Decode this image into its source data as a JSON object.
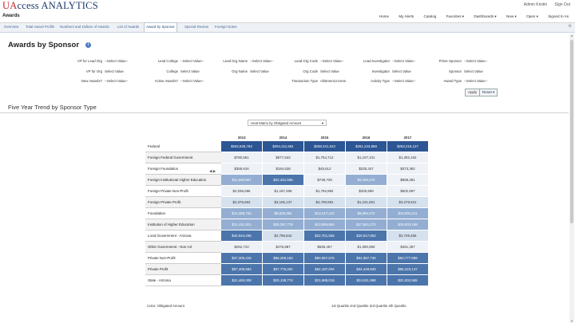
{
  "brand": {
    "u": "UA",
    "rest": "ccess ANALYTICS"
  },
  "user_links": [
    "Admin Kristin",
    "Sign Out"
  ],
  "nav": {
    "title": "Awards",
    "links": [
      "Home",
      "My Alerts",
      "Catalog",
      "Favorites ▾",
      "Dashboards ▾",
      "New ▾",
      "Open ▾",
      "Signed In As"
    ]
  },
  "tabs": [
    {
      "label": "Overview",
      "active": false
    },
    {
      "label": "Total Award Profile",
      "active": false
    },
    {
      "label": "Numbers and Dollars of Awards",
      "active": false
    },
    {
      "label": "List of Awards",
      "active": false
    },
    {
      "label": "Award by Sponsor",
      "active": true
    },
    {
      "label": "Special Review",
      "active": false
    },
    {
      "label": "Foreign Notes",
      "active": false
    }
  ],
  "page": {
    "title": "Awards by Sponsor"
  },
  "prompts": {
    "row1": [
      {
        "label": "VP for Lead Org",
        "value": "--Select Value--"
      },
      {
        "label": "Lead College",
        "value": "--Select Value--"
      },
      {
        "label": "Lead Org Name",
        "value": "--Select Value--"
      },
      {
        "label": "Lead Org Code",
        "value": "--Select Value--"
      },
      {
        "label": "Lead Investigator",
        "value": "--Select Value--"
      },
      {
        "label": "Prime Sponsor",
        "value": "--Select Value--"
      }
    ],
    "row2": [
      {
        "label": "VP for Org",
        "value": "Select Value"
      },
      {
        "label": "College",
        "value": "Select Value"
      },
      {
        "label": "Org Name",
        "value": "Select Value"
      },
      {
        "label": "Org Code",
        "value": "Select Value"
      },
      {
        "label": "Investigator",
        "value": "Select Value"
      },
      {
        "label": "Sponsor",
        "value": "Select Value"
      }
    ],
    "row3": [
      {
        "label": "New Awards?",
        "value": "--Select Value--"
      },
      {
        "label": "Active Awards?",
        "value": "--Select Value--"
      },
      {
        "label": "",
        "value": ""
      },
      {
        "label": "Transaction Type",
        "value": "Allotment,Increm"
      },
      {
        "label": "Activity Type",
        "value": "--Select Value--"
      },
      {
        "label": "Award Type",
        "value": "--Select Value--"
      }
    ],
    "apply_label": "Apply",
    "reset_label": "Reset ▾"
  },
  "section": {
    "title": "Five Year Trend by Sponsor Type",
    "table_selector": "Heat Matrix by Obligated Amount"
  },
  "table": {
    "years": [
      "2013",
      "2014",
      "2015",
      "2016",
      "2017"
    ],
    "rows": [
      {
        "name": "Federal",
        "values": [
          "$262,628,762",
          "$254,411,581",
          "$268,341,042",
          "$251,223,868",
          "$263,219,127"
        ],
        "shades": [
          1,
          1,
          1,
          1,
          1
        ]
      },
      {
        "name": "Foreign Federal Government",
        "values": [
          "$780,651",
          "$577,532",
          "$1,754,712",
          "$1,107,101",
          "$1,302,152"
        ],
        "shades": [
          5,
          5,
          5,
          5,
          5
        ]
      },
      {
        "name": "Foreign Foundation",
        "values": [
          "$359,616",
          "$184,538",
          "$45,612",
          "$225,347",
          "$373,382"
        ],
        "shades": [
          5,
          5,
          5,
          5,
          5
        ]
      },
      {
        "name": "Foreign Institutional Higher Education",
        "values": [
          "$11,500,967",
          "$22,331,565",
          "$738,729",
          "$9,450,276",
          "$958,281"
        ],
        "shades": [
          3,
          2,
          5,
          3,
          5
        ]
      },
      {
        "name": "Foreign Private Non-Profit",
        "values": [
          "$2,036,096",
          "$1,197,459",
          "$1,794,984",
          "$325,599",
          "$502,697"
        ],
        "shades": [
          5,
          5,
          5,
          5,
          5
        ]
      },
      {
        "name": "Foreign Private Profit",
        "values": [
          "$2,376,662",
          "$3,106,137",
          "$4,700,591",
          "$1,231,651",
          "$3,278,621"
        ],
        "shades": [
          4,
          4,
          4,
          4,
          4
        ]
      },
      {
        "name": "Foundation",
        "values": [
          "$13,358,753",
          "$8,529,382",
          "$12,417,110",
          "$9,094,272",
          "$16,004,211"
        ],
        "shades": [
          3,
          3,
          3,
          3,
          3
        ]
      },
      {
        "name": "Institution of Higher Education",
        "values": [
          "$11,431,821",
          "$26,357,778",
          "$13,889,854",
          "$17,501,271",
          "$19,003,168"
        ],
        "shades": [
          3,
          3,
          3,
          3,
          3
        ]
      },
      {
        "name": "Local Government - Arizona",
        "values": [
          "$42,944,265",
          "$2,796,842",
          "$22,751,555",
          "$20,617,652",
          "$2,749,456"
        ],
        "shades": [
          2,
          4,
          2,
          2,
          4
        ]
      },
      {
        "name": "Other Government - Non-AZ",
        "values": [
          "$252,710",
          "$476,887",
          "$636,457",
          "$1,090,950",
          "$461,357"
        ],
        "shades": [
          5,
          5,
          5,
          5,
          5
        ]
      },
      {
        "name": "Private Non-Profit",
        "values": [
          "$47,305,316",
          "$56,259,163",
          "$50,957,576",
          "$52,967,730",
          "$53,777,588"
        ],
        "shades": [
          2,
          2,
          2,
          2,
          2
        ]
      },
      {
        "name": "Private Profit",
        "values": [
          "$67,409,684",
          "$57,775,262",
          "$62,187,004",
          "$34,449,940",
          "$55,223,147"
        ],
        "shades": [
          2,
          2,
          2,
          2,
          2
        ]
      },
      {
        "name": "State - Arizona",
        "values": [
          "$21,460,008",
          "$20,138,774",
          "$21,989,019",
          "$24,911,998",
          "$21,002,565"
        ],
        "shades": [
          2,
          2,
          2,
          2,
          2
        ]
      }
    ]
  },
  "legend": {
    "left": "Color: Obligated Amount",
    "right": "1st Quartile  2nd Quartile  3rd Quartile  4th Quartile"
  }
}
